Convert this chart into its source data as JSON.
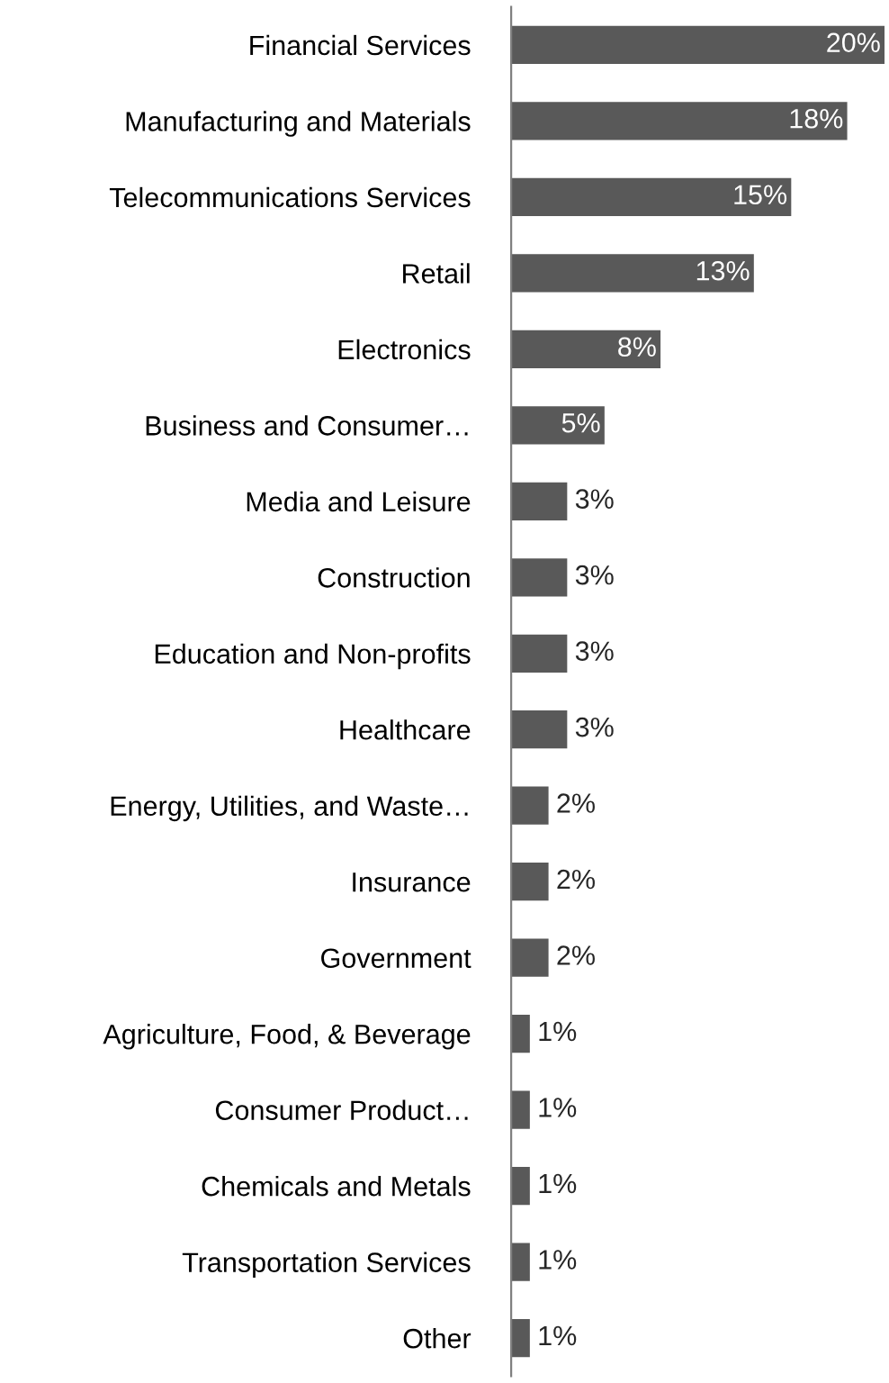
{
  "chart_data": {
    "type": "bar",
    "orientation": "horizontal",
    "categories": [
      "Financial Services",
      "Manufacturing and Materials",
      "Telecommunications Services",
      "Retail",
      "Electronics",
      "Business and Consumer…",
      "Media and Leisure",
      "Construction",
      "Education and Non-profits",
      "Healthcare",
      "Energy, Utilities, and Waste…",
      "Insurance",
      "Government",
      "Agriculture, Food, & Beverage",
      "Consumer Product…",
      "Chemicals and Metals",
      "Transportation Services",
      "Other"
    ],
    "values": [
      20,
      18,
      15,
      13,
      8,
      5,
      3,
      3,
      3,
      3,
      2,
      2,
      2,
      1,
      1,
      1,
      1,
      1
    ],
    "color": "#595959",
    "data_labels": true,
    "value_labels": [
      "20%",
      "18%",
      "15%",
      "13%",
      "8%",
      "5%",
      "3%",
      "3%",
      "3%",
      "3%",
      "2%",
      "2%",
      "2%",
      "1%",
      "1%",
      "1%",
      "1%",
      "1%"
    ],
    "grid": false,
    "legend": false
  }
}
